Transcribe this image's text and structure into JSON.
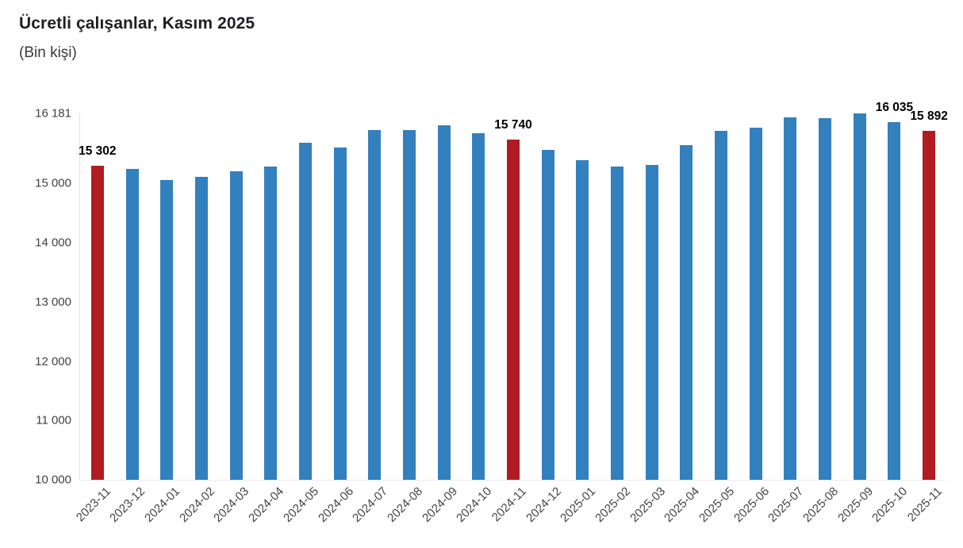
{
  "header": {
    "title": "Ücretli çalışanlar, Kasım 2025",
    "subtitle": "(Bin kişi)"
  },
  "colors": {
    "bar": "#3380BE",
    "highlight": "#B01C22",
    "axis_line": "#E2E2E2",
    "title_text": "#1F1F23",
    "tick_text": "#404040",
    "data_label_text": "#000000"
  },
  "chart_data": {
    "type": "bar",
    "title": "Ücretli çalışanlar, Kasım 2025",
    "subtitle": "(Bin kişi)",
    "xlabel": "",
    "ylabel": "Bin kişi",
    "ylim": [
      10000,
      16181
    ],
    "grid": false,
    "legend": false,
    "categories": [
      "2023-11",
      "2023-12",
      "2024-01",
      "2024-02",
      "2024-03",
      "2024-04",
      "2024-05",
      "2024-06",
      "2024-07",
      "2024-08",
      "2024-09",
      "2024-10",
      "2024-11",
      "2024-12",
      "2025-01",
      "2025-02",
      "2025-03",
      "2025-04",
      "2025-05",
      "2025-06",
      "2025-07",
      "2025-08",
      "2025-09",
      "2025-10",
      "2025-11"
    ],
    "values": [
      15302,
      15240,
      15060,
      15115,
      15205,
      15280,
      15685,
      15605,
      15905,
      15900,
      15980,
      15845,
      15740,
      15565,
      15390,
      15280,
      15310,
      15645,
      15885,
      15940,
      16110,
      16100,
      16181,
      16035,
      15892
    ],
    "highlighted_categories": [
      "2023-11",
      "2024-11",
      "2025-11"
    ],
    "data_labels": [
      {
        "category": "2023-11",
        "text": "15 302"
      },
      {
        "category": "2024-11",
        "text": "15 740"
      },
      {
        "category": "2025-10",
        "text": "16 035"
      },
      {
        "category": "2025-11",
        "text": "15 892"
      }
    ],
    "yticks": [
      {
        "value": 16181,
        "label": "16 181"
      },
      {
        "value": 15000,
        "label": "15 000"
      },
      {
        "value": 14000,
        "label": "14 000"
      },
      {
        "value": 13000,
        "label": "13 000"
      },
      {
        "value": 12000,
        "label": "12 000"
      },
      {
        "value": 11000,
        "label": "11 000"
      },
      {
        "value": 10000,
        "label": "10 000"
      }
    ]
  }
}
